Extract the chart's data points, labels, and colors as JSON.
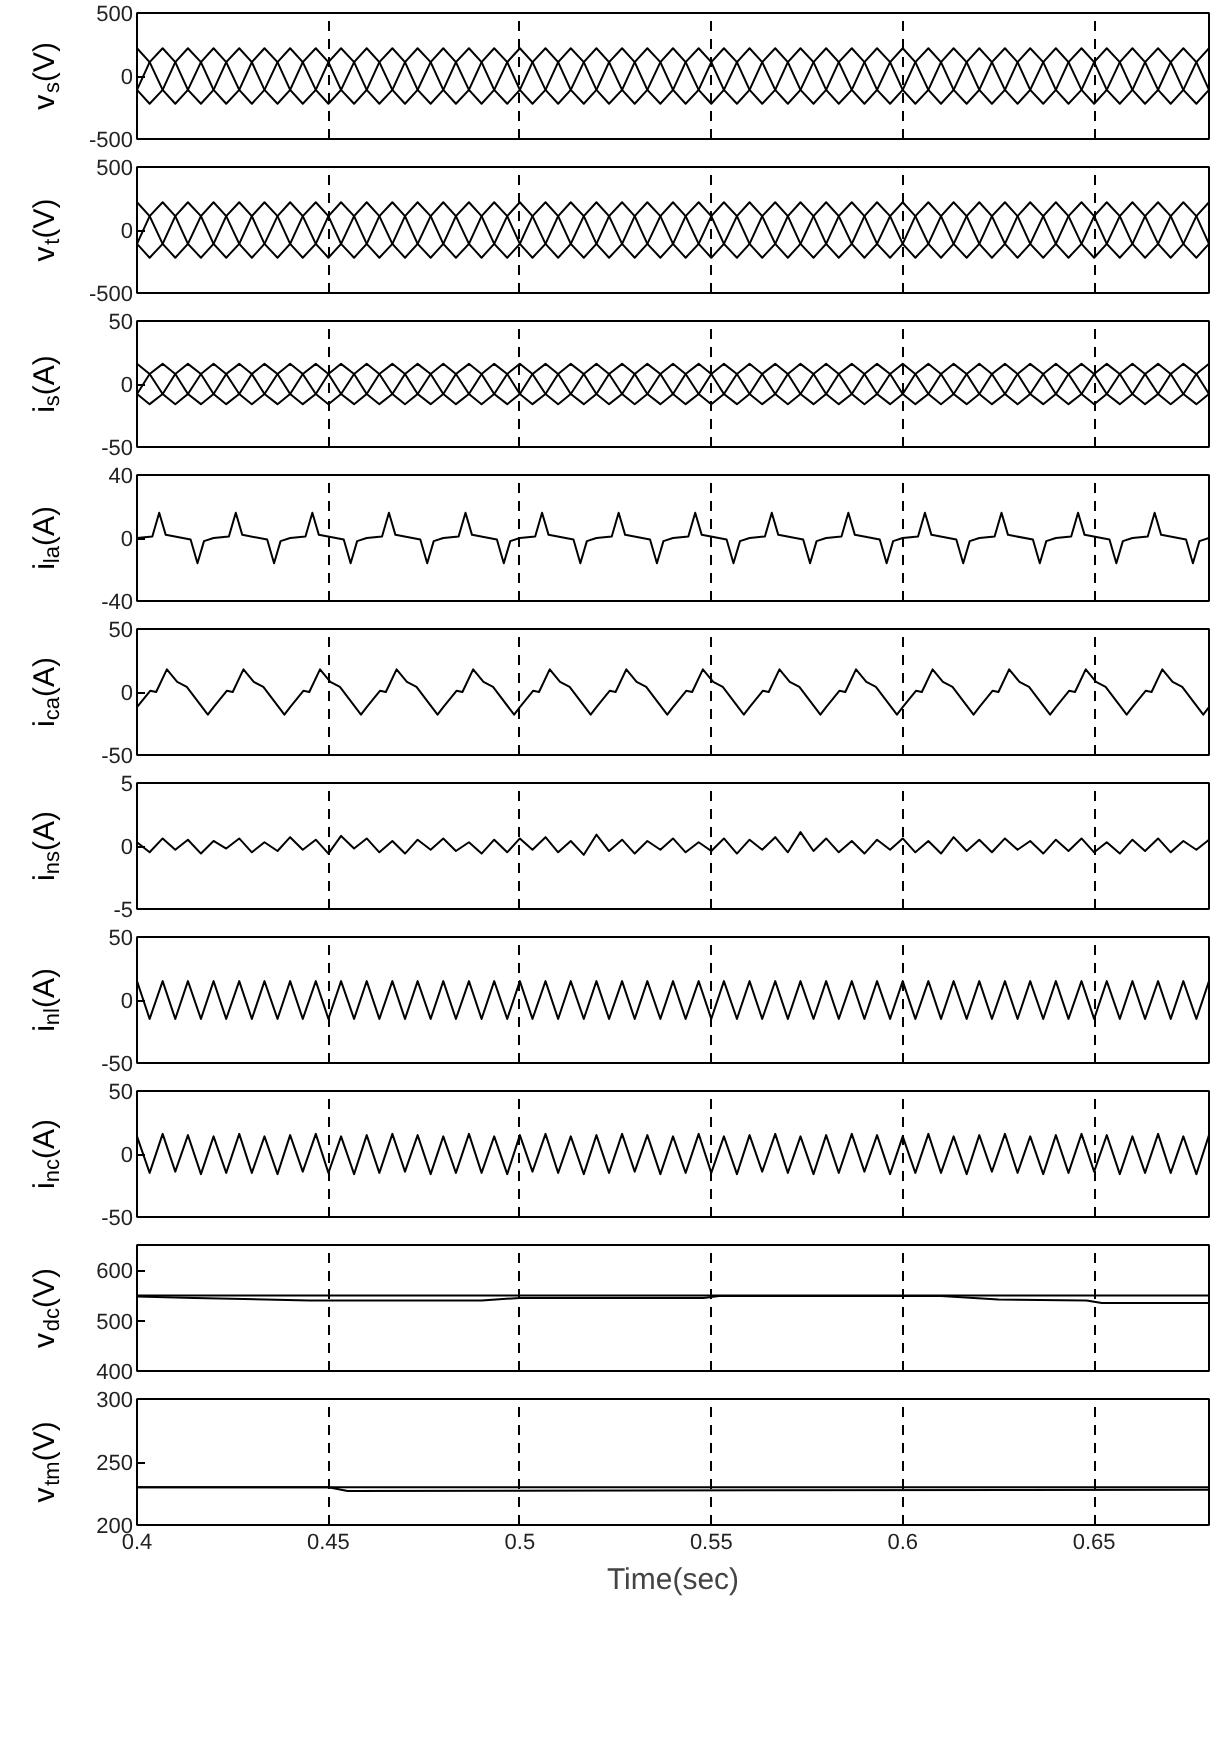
{
  "chart_data": [
    {
      "type": "line",
      "ylabel": "v$_{s}$(V)",
      "xlim": [
        0.4,
        0.68
      ],
      "xticks": [
        0.4,
        0.45,
        0.5,
        0.55,
        0.6,
        0.65
      ],
      "ylim": [
        -500,
        500
      ],
      "yticks": [
        -500,
        0,
        500
      ],
      "grid": "x",
      "tick_labels": "y",
      "x": [
        0.4,
        0.4033,
        0.4067,
        0.41,
        0.4133,
        0.4167,
        0.42,
        0.4233,
        0.4267,
        0.43,
        0.4333,
        0.4367,
        0.44,
        0.4433,
        0.4467,
        0.45,
        0.4533,
        0.4567,
        0.46,
        0.4633,
        0.4667,
        0.47,
        0.4733,
        0.4767,
        0.48,
        0.4833,
        0.4867,
        0.49,
        0.4933,
        0.4967,
        0.5,
        0.5033,
        0.5067,
        0.51,
        0.5133,
        0.5167,
        0.52,
        0.5233,
        0.5267,
        0.53,
        0.5333,
        0.5367,
        0.54,
        0.5433,
        0.5467,
        0.55,
        0.5533,
        0.5567,
        0.56,
        0.5633,
        0.5667,
        0.57,
        0.5733,
        0.5767,
        0.58,
        0.5833,
        0.5867,
        0.59,
        0.5933,
        0.5967,
        0.6,
        0.6033,
        0.6067,
        0.61,
        0.6133,
        0.6167,
        0.62,
        0.6233,
        0.6267,
        0.63,
        0.6333,
        0.6367,
        0.64,
        0.6433,
        0.6467,
        0.65,
        0.6533,
        0.6567,
        0.66,
        0.6633,
        0.6667,
        0.67,
        0.6733,
        0.6767,
        0.68
      ],
      "series": [
        {
          "color": "#000000",
          "values": [
            220,
            110,
            -110,
            -220,
            -110,
            110,
            220,
            110,
            -110,
            -220,
            -110,
            110,
            220,
            110,
            -110,
            -220,
            -110,
            110,
            220,
            110,
            -110,
            -220,
            -110,
            110,
            220,
            110,
            -110,
            -220,
            -110,
            110,
            220,
            110,
            -110,
            -220,
            -110,
            110,
            220,
            110,
            -110,
            -220,
            -110,
            110,
            220,
            110,
            -110,
            -220,
            -110,
            110,
            220,
            110,
            -110,
            -220,
            -110,
            110,
            220,
            110,
            -110,
            -220,
            -110,
            110,
            220,
            110,
            -110,
            -220,
            -110,
            110,
            220,
            110,
            -110,
            -220,
            -110,
            110,
            220,
            110,
            -110,
            -220,
            -110,
            110,
            220,
            110,
            -110,
            -220,
            -110,
            110,
            220
          ]
        },
        {
          "color": "#000000",
          "values": [
            -110,
            110,
            220,
            110,
            -110,
            -220,
            -110,
            110,
            220,
            110,
            -110,
            -220,
            -110,
            110,
            220,
            110,
            -110,
            -220,
            -110,
            110,
            220,
            110,
            -110,
            -220,
            -110,
            110,
            220,
            110,
            -110,
            -220,
            -110,
            110,
            220,
            110,
            -110,
            -220,
            -110,
            110,
            220,
            110,
            -110,
            -220,
            -110,
            110,
            220,
            110,
            -110,
            -220,
            -110,
            110,
            220,
            110,
            -110,
            -220,
            -110,
            110,
            220,
            110,
            -110,
            -220,
            -110,
            110,
            220,
            110,
            -110,
            -220,
            -110,
            110,
            220,
            110,
            -110,
            -220,
            -110,
            110,
            220,
            110,
            -110,
            -220,
            -110,
            110,
            220,
            110,
            -110,
            -220,
            -110
          ]
        },
        {
          "color": "#000000",
          "values": [
            -110,
            -220,
            -110,
            110,
            220,
            110,
            -110,
            -220,
            -110,
            110,
            220,
            110,
            -110,
            -220,
            -110,
            110,
            220,
            110,
            -110,
            -220,
            -110,
            110,
            220,
            110,
            -110,
            -220,
            -110,
            110,
            220,
            110,
            -110,
            -220,
            -110,
            110,
            220,
            110,
            -110,
            -220,
            -110,
            110,
            220,
            110,
            -110,
            -220,
            -110,
            110,
            220,
            110,
            -110,
            -220,
            -110,
            110,
            220,
            110,
            -110,
            -220,
            -110,
            110,
            220,
            110,
            -110,
            -220,
            -110,
            110,
            220,
            110,
            -110,
            -220,
            -110,
            110,
            220,
            110,
            -110,
            -220,
            -110,
            110,
            220,
            110,
            -110,
            -220,
            -110,
            110,
            220,
            110,
            -110
          ]
        }
      ]
    },
    {
      "type": "line",
      "ylabel": "v$_{t}$(V)",
      "xlim": [
        0.4,
        0.68
      ],
      "xticks": [
        0.4,
        0.45,
        0.5,
        0.55,
        0.6,
        0.65
      ],
      "ylim": [
        -500,
        500
      ],
      "yticks": [
        -500,
        0,
        500
      ],
      "grid": "x",
      "tick_labels": "y",
      "x": [
        0.4,
        0.4033,
        0.4067,
        0.41,
        0.4133,
        0.4167,
        0.42,
        0.4233,
        0.4267,
        0.43,
        0.4333,
        0.4367,
        0.44,
        0.4433,
        0.4467,
        0.45,
        0.4533,
        0.4567,
        0.46,
        0.4633,
        0.4667,
        0.47,
        0.4733,
        0.4767,
        0.48,
        0.4833,
        0.4867,
        0.49,
        0.4933,
        0.4967,
        0.5,
        0.5033,
        0.5067,
        0.51,
        0.5133,
        0.5167,
        0.52,
        0.5233,
        0.5267,
        0.53,
        0.5333,
        0.5367,
        0.54,
        0.5433,
        0.5467,
        0.55,
        0.5533,
        0.5567,
        0.56,
        0.5633,
        0.5667,
        0.57,
        0.5733,
        0.5767,
        0.58,
        0.5833,
        0.5867,
        0.59,
        0.5933,
        0.5967,
        0.6,
        0.6033,
        0.6067,
        0.61,
        0.6133,
        0.6167,
        0.62,
        0.6233,
        0.6267,
        0.63,
        0.6333,
        0.6367,
        0.64,
        0.6433,
        0.6467,
        0.65,
        0.6533,
        0.6567,
        0.66,
        0.6633,
        0.6667,
        0.67,
        0.6733,
        0.6767,
        0.68
      ],
      "series": [
        {
          "color": "#000000",
          "values": [
            220,
            110,
            -110,
            -220,
            -110,
            110,
            220,
            110,
            -110,
            -220,
            -110,
            110,
            220,
            110,
            -110,
            -220,
            -110,
            110,
            220,
            110,
            -110,
            -220,
            -110,
            110,
            220,
            110,
            -110,
            -220,
            -110,
            110,
            220,
            110,
            -110,
            -220,
            -110,
            110,
            220,
            110,
            -110,
            -220,
            -110,
            110,
            220,
            110,
            -110,
            -220,
            -110,
            110,
            220,
            110,
            -110,
            -220,
            -110,
            110,
            220,
            110,
            -110,
            -220,
            -110,
            110,
            220,
            110,
            -110,
            -220,
            -110,
            110,
            220,
            110,
            -110,
            -220,
            -110,
            110,
            220,
            110,
            -110,
            -220,
            -110,
            110,
            220,
            110,
            -110,
            -220,
            -110,
            110,
            220
          ]
        },
        {
          "color": "#000000",
          "values": [
            -110,
            110,
            220,
            110,
            -110,
            -220,
            -110,
            110,
            220,
            110,
            -110,
            -220,
            -110,
            110,
            220,
            110,
            -110,
            -220,
            -110,
            110,
            220,
            110,
            -110,
            -220,
            -110,
            110,
            220,
            110,
            -110,
            -220,
            -110,
            110,
            220,
            110,
            -110,
            -220,
            -110,
            110,
            220,
            110,
            -110,
            -220,
            -110,
            110,
            220,
            110,
            -110,
            -220,
            -110,
            110,
            220,
            110,
            -110,
            -220,
            -110,
            110,
            220,
            110,
            -110,
            -220,
            -110,
            110,
            220,
            110,
            -110,
            -220,
            -110,
            110,
            220,
            110,
            -110,
            -220,
            -110,
            110,
            220,
            110,
            -110,
            -220,
            -110,
            110,
            220,
            110,
            -110,
            -220,
            -110
          ]
        },
        {
          "color": "#000000",
          "values": [
            -110,
            -220,
            -110,
            110,
            220,
            110,
            -110,
            -220,
            -110,
            110,
            220,
            110,
            -110,
            -220,
            -110,
            110,
            220,
            110,
            -110,
            -220,
            -110,
            110,
            220,
            110,
            -110,
            -220,
            -110,
            110,
            220,
            110,
            -110,
            -220,
            -110,
            110,
            220,
            110,
            -110,
            -220,
            -110,
            110,
            220,
            110,
            -110,
            -220,
            -110,
            110,
            220,
            110,
            -110,
            -220,
            -110,
            110,
            220,
            110,
            -110,
            -220,
            -110,
            110,
            220,
            110,
            -110,
            -220,
            -110,
            110,
            220,
            110,
            -110,
            -220,
            -110,
            110,
            220,
            110,
            -110,
            -220,
            -110,
            110,
            220,
            110,
            -110,
            -220,
            -110,
            110,
            220,
            110,
            -110
          ]
        }
      ]
    },
    {
      "type": "line",
      "ylabel": "i$_{s}$(A)",
      "xlim": [
        0.4,
        0.68
      ],
      "xticks": [
        0.4,
        0.45,
        0.5,
        0.55,
        0.6,
        0.65
      ],
      "ylim": [
        -50,
        50
      ],
      "yticks": [
        -50,
        0,
        50
      ],
      "grid": "x",
      "tick_labels": "y",
      "x": [
        0.4,
        0.4033,
        0.4067,
        0.41,
        0.4133,
        0.4167,
        0.42,
        0.4233,
        0.4267,
        0.43,
        0.4333,
        0.4367,
        0.44,
        0.4433,
        0.4467,
        0.45,
        0.4533,
        0.4567,
        0.46,
        0.4633,
        0.4667,
        0.47,
        0.4733,
        0.4767,
        0.48,
        0.4833,
        0.4867,
        0.49,
        0.4933,
        0.4967,
        0.5,
        0.5033,
        0.5067,
        0.51,
        0.5133,
        0.5167,
        0.52,
        0.5233,
        0.5267,
        0.53,
        0.5333,
        0.5367,
        0.54,
        0.5433,
        0.5467,
        0.55,
        0.5533,
        0.5567,
        0.56,
        0.5633,
        0.5667,
        0.57,
        0.5733,
        0.5767,
        0.58,
        0.5833,
        0.5867,
        0.59,
        0.5933,
        0.5967,
        0.6,
        0.6033,
        0.6067,
        0.61,
        0.6133,
        0.6167,
        0.62,
        0.6233,
        0.6267,
        0.63,
        0.6333,
        0.6367,
        0.64,
        0.6433,
        0.6467,
        0.65,
        0.6533,
        0.6567,
        0.66,
        0.6633,
        0.6667,
        0.67,
        0.6733,
        0.6767,
        0.68
      ],
      "series": [
        {
          "color": "#000000",
          "values": [
            16,
            8,
            -8,
            -16,
            -8,
            8,
            16,
            8,
            -8,
            -16,
            -8,
            8,
            16,
            8,
            -8,
            -16,
            -8,
            8,
            16,
            8,
            -8,
            -16,
            -8,
            8,
            16,
            8,
            -8,
            -16,
            -8,
            8,
            16,
            8,
            -8,
            -16,
            -8,
            8,
            16,
            8,
            -8,
            -16,
            -8,
            8,
            16,
            8,
            -8,
            -16,
            -8,
            8,
            16,
            8,
            -8,
            -16,
            -8,
            8,
            16,
            8,
            -8,
            -16,
            -8,
            8,
            16,
            8,
            -8,
            -16,
            -8,
            8,
            16,
            8,
            -8,
            -16,
            -8,
            8,
            16,
            8,
            -8,
            -16,
            -8,
            8,
            16,
            8,
            -8,
            -16,
            -8,
            8,
            16
          ]
        },
        {
          "color": "#000000",
          "values": [
            -8,
            8,
            16,
            8,
            -8,
            -16,
            -8,
            8,
            16,
            8,
            -8,
            -16,
            -8,
            8,
            16,
            8,
            -8,
            -16,
            -8,
            8,
            16,
            8,
            -8,
            -16,
            -8,
            8,
            16,
            8,
            -8,
            -16,
            -8,
            8,
            16,
            8,
            -8,
            -16,
            -8,
            8,
            16,
            8,
            -8,
            -16,
            -8,
            8,
            16,
            8,
            -8,
            -16,
            -8,
            8,
            16,
            8,
            -8,
            -16,
            -8,
            8,
            16,
            8,
            -8,
            -16,
            -8,
            8,
            16,
            8,
            -8,
            -16,
            -8,
            8,
            16,
            8,
            -8,
            -16,
            -8,
            8,
            16,
            8,
            -8,
            -16,
            -8,
            8,
            16,
            8,
            -8,
            -16,
            -8
          ]
        },
        {
          "color": "#000000",
          "values": [
            -8,
            -16,
            -8,
            8,
            16,
            8,
            -8,
            -16,
            -8,
            8,
            16,
            8,
            -8,
            -16,
            -8,
            8,
            16,
            8,
            -8,
            -16,
            -8,
            8,
            16,
            8,
            -8,
            -16,
            -8,
            8,
            16,
            8,
            -8,
            -16,
            -8,
            8,
            16,
            8,
            -8,
            -16,
            -8,
            8,
            16,
            8,
            -8,
            -16,
            -8,
            8,
            16,
            8,
            -8,
            -16,
            -8,
            8,
            16,
            8,
            -8,
            -16,
            -8,
            8,
            16,
            8,
            -8,
            -16,
            -8,
            8,
            16,
            8,
            -8,
            -16,
            -8,
            8,
            16,
            8,
            -8,
            -16,
            -8,
            8,
            16,
            8,
            -8,
            -16,
            -8,
            8,
            16,
            8,
            -8
          ]
        }
      ]
    },
    {
      "type": "line",
      "ylabel": "i$_{la}$(A)",
      "xlim": [
        0.4,
        0.68
      ],
      "xticks": [
        0.4,
        0.45,
        0.5,
        0.55,
        0.6,
        0.65
      ],
      "ylim": [
        -40,
        40
      ],
      "yticks": [
        -40,
        0,
        40
      ],
      "grid": "x",
      "tick_labels": "y",
      "series": [
        {
          "color": "#000000",
          "x": [
            0.4,
            0.404,
            0.4058,
            0.4075,
            0.414,
            0.4158,
            0.4175,
            0.42,
            0.424,
            0.4258,
            0.4275,
            0.434,
            0.4358,
            0.4375,
            0.44,
            0.444,
            0.4458,
            0.4475,
            0.454,
            0.4558,
            0.4575,
            0.46,
            0.464,
            0.4658,
            0.4675,
            0.474,
            0.4758,
            0.4775,
            0.48,
            0.484,
            0.4858,
            0.4875,
            0.494,
            0.4958,
            0.4975,
            0.5,
            0.504,
            0.5058,
            0.5075,
            0.514,
            0.5158,
            0.5175,
            0.52,
            0.524,
            0.5258,
            0.5275,
            0.534,
            0.5358,
            0.5375,
            0.54,
            0.544,
            0.5458,
            0.5475,
            0.554,
            0.5558,
            0.5575,
            0.56,
            0.564,
            0.5658,
            0.5675,
            0.574,
            0.5758,
            0.5775,
            0.58,
            0.584,
            0.5858,
            0.5875,
            0.594,
            0.5958,
            0.5975,
            0.6,
            0.604,
            0.6058,
            0.6075,
            0.614,
            0.6158,
            0.6175,
            0.62,
            0.624,
            0.6258,
            0.6275,
            0.634,
            0.6358,
            0.6375,
            0.64,
            0.644,
            0.6458,
            0.6475,
            0.654,
            0.6558,
            0.6575,
            0.66,
            0.664,
            0.6658,
            0.6675,
            0.674,
            0.6758,
            0.6775,
            0.68
          ],
          "values": [
            0,
            1,
            16,
            2,
            -1,
            -16,
            -2,
            0,
            1,
            16,
            2,
            -1,
            -16,
            -2,
            0,
            1,
            16,
            2,
            -1,
            -16,
            -2,
            0,
            1,
            16,
            2,
            -1,
            -16,
            -2,
            0,
            1,
            16,
            2,
            -1,
            -16,
            -2,
            0,
            1,
            16,
            2,
            -1,
            -16,
            -2,
            0,
            1,
            16,
            2,
            -1,
            -16,
            -2,
            0,
            1,
            16,
            2,
            -1,
            -16,
            -2,
            0,
            1,
            16,
            2,
            -1,
            -16,
            -2,
            0,
            1,
            16,
            2,
            -1,
            -16,
            -2,
            0,
            1,
            16,
            2,
            -1,
            -16,
            -2,
            0,
            1,
            16,
            2,
            -1,
            -16,
            -2,
            0,
            1,
            16,
            2,
            -1,
            -16,
            -2,
            0,
            1,
            16,
            2,
            -1,
            -16,
            -2,
            0
          ]
        }
      ]
    },
    {
      "type": "line",
      "ylabel": "i$_{ca}$(A)",
      "xlim": [
        0.4,
        0.68
      ],
      "xticks": [
        0.4,
        0.45,
        0.5,
        0.55,
        0.6,
        0.65
      ],
      "ylim": [
        -50,
        50
      ],
      "yticks": [
        -50,
        0,
        50
      ],
      "grid": "x",
      "tick_labels": "y",
      "series": [
        {
          "color": "#000000",
          "x": [
            0.4,
            0.4035,
            0.405,
            0.4078,
            0.4105,
            0.413,
            0.4185,
            0.42,
            0.4235,
            0.425,
            0.4278,
            0.4305,
            0.433,
            0.4385,
            0.44,
            0.4435,
            0.445,
            0.4478,
            0.4505,
            0.453,
            0.4585,
            0.46,
            0.4635,
            0.465,
            0.4678,
            0.4705,
            0.473,
            0.4785,
            0.48,
            0.4835,
            0.485,
            0.4878,
            0.4905,
            0.493,
            0.4985,
            0.5,
            0.5035,
            0.505,
            0.5078,
            0.5105,
            0.513,
            0.5185,
            0.52,
            0.5235,
            0.525,
            0.5278,
            0.5305,
            0.533,
            0.5385,
            0.54,
            0.5435,
            0.545,
            0.5478,
            0.5505,
            0.553,
            0.5585,
            0.56,
            0.5635,
            0.565,
            0.5678,
            0.5705,
            0.573,
            0.5785,
            0.58,
            0.5835,
            0.585,
            0.5878,
            0.5905,
            0.593,
            0.5985,
            0.6,
            0.6035,
            0.605,
            0.6078,
            0.6105,
            0.613,
            0.6185,
            0.62,
            0.6235,
            0.625,
            0.6278,
            0.6305,
            0.633,
            0.6385,
            0.64,
            0.6435,
            0.645,
            0.6478,
            0.6505,
            0.653,
            0.6585,
            0.66,
            0.6635,
            0.665,
            0.6678,
            0.6705,
            0.673,
            0.6785,
            0.68
          ],
          "values": [
            -12,
            1,
            0,
            18,
            8,
            4,
            -18,
            -12,
            1,
            0,
            18,
            8,
            4,
            -18,
            -12,
            1,
            0,
            18,
            8,
            4,
            -18,
            -12,
            1,
            0,
            18,
            8,
            4,
            -18,
            -12,
            1,
            0,
            18,
            8,
            4,
            -18,
            -12,
            1,
            0,
            18,
            8,
            4,
            -18,
            -12,
            1,
            0,
            18,
            8,
            4,
            -18,
            -12,
            1,
            0,
            18,
            8,
            4,
            -18,
            -12,
            1,
            0,
            18,
            8,
            4,
            -18,
            -12,
            1,
            0,
            18,
            8,
            4,
            -18,
            -12,
            1,
            0,
            18,
            8,
            4,
            -18,
            -12,
            1,
            0,
            18,
            8,
            4,
            -18,
            -12,
            1,
            0,
            18,
            8,
            4,
            -18,
            -12,
            1,
            0,
            18,
            8,
            4,
            -18,
            -12
          ]
        }
      ]
    },
    {
      "type": "line",
      "ylabel": "i$_{ns}$(A)",
      "xlim": [
        0.4,
        0.68
      ],
      "xticks": [
        0.4,
        0.45,
        0.5,
        0.55,
        0.6,
        0.65
      ],
      "ylim": [
        -5,
        5
      ],
      "yticks": [
        -5,
        0,
        5
      ],
      "grid": "x",
      "tick_labels": "y",
      "x": [
        0.4,
        0.4033,
        0.4067,
        0.41,
        0.4133,
        0.4167,
        0.42,
        0.4233,
        0.4267,
        0.43,
        0.4333,
        0.4367,
        0.44,
        0.4433,
        0.4467,
        0.45,
        0.4533,
        0.4567,
        0.46,
        0.4633,
        0.4667,
        0.47,
        0.4733,
        0.4767,
        0.48,
        0.4833,
        0.4867,
        0.49,
        0.4933,
        0.4967,
        0.5,
        0.5033,
        0.5067,
        0.51,
        0.5133,
        0.5167,
        0.52,
        0.5233,
        0.5267,
        0.53,
        0.5333,
        0.5367,
        0.54,
        0.5433,
        0.5467,
        0.55,
        0.5533,
        0.5567,
        0.56,
        0.5633,
        0.5667,
        0.57,
        0.5733,
        0.5767,
        0.58,
        0.5833,
        0.5867,
        0.59,
        0.5933,
        0.5967,
        0.6,
        0.6033,
        0.6067,
        0.61,
        0.6133,
        0.6167,
        0.62,
        0.6233,
        0.6267,
        0.63,
        0.6333,
        0.6367,
        0.64,
        0.6433,
        0.6467,
        0.65,
        0.6533,
        0.6567,
        0.66,
        0.6633,
        0.6667,
        0.67,
        0.6733,
        0.6767,
        0.68
      ],
      "series": [
        {
          "color": "#000000",
          "values": [
            0.3,
            -0.5,
            0.6,
            -0.3,
            0.5,
            -0.6,
            0.4,
            -0.2,
            0.6,
            -0.5,
            0.3,
            -0.4,
            0.7,
            -0.3,
            0.5,
            -0.6,
            0.8,
            -0.2,
            0.6,
            -0.5,
            0.4,
            -0.6,
            0.5,
            -0.3,
            0.6,
            -0.4,
            0.3,
            -0.6,
            0.5,
            -0.5,
            0.6,
            -0.3,
            0.7,
            -0.5,
            0.4,
            -0.7,
            0.9,
            -0.4,
            0.5,
            -0.6,
            0.4,
            -0.3,
            0.6,
            -0.5,
            0.3,
            -0.4,
            0.6,
            -0.6,
            0.5,
            -0.3,
            0.7,
            -0.5,
            1.1,
            -0.4,
            0.6,
            -0.5,
            0.4,
            -0.6,
            0.5,
            -0.3,
            0.6,
            -0.5,
            0.4,
            -0.6,
            0.7,
            -0.4,
            0.5,
            -0.5,
            0.6,
            -0.3,
            0.4,
            -0.6,
            0.5,
            -0.4,
            0.6,
            -0.5,
            0.3,
            -0.6,
            0.5,
            -0.4,
            0.6,
            -0.5,
            0.4,
            -0.3,
            0.5
          ]
        }
      ]
    },
    {
      "type": "line",
      "ylabel": "i$_{nl}$(A)",
      "xlim": [
        0.4,
        0.68
      ],
      "xticks": [
        0.4,
        0.45,
        0.5,
        0.55,
        0.6,
        0.65
      ],
      "ylim": [
        -50,
        50
      ],
      "yticks": [
        -50,
        0,
        50
      ],
      "grid": "x",
      "tick_labels": "y",
      "x": [
        0.4,
        0.4033,
        0.4067,
        0.41,
        0.4133,
        0.4167,
        0.42,
        0.4233,
        0.4267,
        0.43,
        0.4333,
        0.4367,
        0.44,
        0.4433,
        0.4467,
        0.45,
        0.4533,
        0.4567,
        0.46,
        0.4633,
        0.4667,
        0.47,
        0.4733,
        0.4767,
        0.48,
        0.4833,
        0.4867,
        0.49,
        0.4933,
        0.4967,
        0.5,
        0.5033,
        0.5067,
        0.51,
        0.5133,
        0.5167,
        0.52,
        0.5233,
        0.5267,
        0.53,
        0.5333,
        0.5367,
        0.54,
        0.5433,
        0.5467,
        0.55,
        0.5533,
        0.5567,
        0.56,
        0.5633,
        0.5667,
        0.57,
        0.5733,
        0.5767,
        0.58,
        0.5833,
        0.5867,
        0.59,
        0.5933,
        0.5967,
        0.6,
        0.6033,
        0.6067,
        0.61,
        0.6133,
        0.6167,
        0.62,
        0.6233,
        0.6267,
        0.63,
        0.6333,
        0.6367,
        0.64,
        0.6433,
        0.6467,
        0.65,
        0.6533,
        0.6567,
        0.66,
        0.6633,
        0.6667,
        0.67,
        0.6733,
        0.6767,
        0.68
      ],
      "series": [
        {
          "color": "#000000",
          "values": [
            15,
            -15,
            15,
            -15,
            15,
            -15,
            15,
            -15,
            15,
            -15,
            15,
            -15,
            15,
            -15,
            15,
            -15,
            15,
            -15,
            15,
            -15,
            15,
            -15,
            15,
            -15,
            15,
            -15,
            15,
            -15,
            15,
            -15,
            15,
            -15,
            15,
            -15,
            15,
            -15,
            15,
            -15,
            15,
            -15,
            15,
            -15,
            15,
            -15,
            15,
            -15,
            15,
            -15,
            15,
            -15,
            15,
            -15,
            15,
            -15,
            15,
            -15,
            15,
            -15,
            15,
            -15,
            15,
            -15,
            15,
            -15,
            15,
            -15,
            15,
            -15,
            15,
            -15,
            15,
            -15,
            15,
            -15,
            15,
            -15,
            15,
            -15,
            15,
            -15,
            15,
            -15,
            15,
            -15,
            15
          ]
        }
      ]
    },
    {
      "type": "line",
      "ylabel": "i$_{nc}$(A)",
      "xlim": [
        0.4,
        0.68
      ],
      "xticks": [
        0.4,
        0.45,
        0.5,
        0.55,
        0.6,
        0.65
      ],
      "ylim": [
        -50,
        50
      ],
      "yticks": [
        -50,
        0,
        50
      ],
      "grid": "x",
      "tick_labels": "y",
      "x": [
        0.4,
        0.4033,
        0.4067,
        0.41,
        0.4133,
        0.4167,
        0.42,
        0.4233,
        0.4267,
        0.43,
        0.4333,
        0.4367,
        0.44,
        0.4433,
        0.4467,
        0.45,
        0.4533,
        0.4567,
        0.46,
        0.4633,
        0.4667,
        0.47,
        0.4733,
        0.4767,
        0.48,
        0.4833,
        0.4867,
        0.49,
        0.4933,
        0.4967,
        0.5,
        0.5033,
        0.5067,
        0.51,
        0.5133,
        0.5167,
        0.52,
        0.5233,
        0.5267,
        0.53,
        0.5333,
        0.5367,
        0.54,
        0.5433,
        0.5467,
        0.55,
        0.5533,
        0.5567,
        0.56,
        0.5633,
        0.5667,
        0.57,
        0.5733,
        0.5767,
        0.58,
        0.5833,
        0.5867,
        0.59,
        0.5933,
        0.5967,
        0.6,
        0.6033,
        0.6067,
        0.61,
        0.6133,
        0.6167,
        0.62,
        0.6233,
        0.6267,
        0.63,
        0.6333,
        0.6367,
        0.64,
        0.6433,
        0.6467,
        0.65,
        0.6533,
        0.6567,
        0.66,
        0.6633,
        0.6667,
        0.67,
        0.6733,
        0.6767,
        0.68
      ],
      "series": [
        {
          "color": "#000000",
          "values": [
            14,
            -15,
            16,
            -14,
            15,
            -16,
            14,
            -15,
            16,
            -15,
            14,
            -16,
            15,
            -14,
            16,
            -15,
            14,
            -16,
            15,
            -15,
            16,
            -14,
            15,
            -16,
            14,
            -15,
            16,
            -15,
            14,
            -16,
            15,
            -14,
            16,
            -15,
            14,
            -16,
            15,
            -15,
            16,
            -14,
            15,
            -16,
            14,
            -15,
            16,
            -15,
            14,
            -16,
            15,
            -14,
            16,
            -15,
            14,
            -16,
            15,
            -15,
            16,
            -14,
            15,
            -16,
            14,
            -15,
            16,
            -15,
            14,
            -16,
            15,
            -14,
            16,
            -15,
            14,
            -16,
            15,
            -15,
            16,
            -14,
            15,
            -16,
            14,
            -15,
            16,
            -15,
            14,
            -16,
            15
          ]
        }
      ]
    },
    {
      "type": "line",
      "ylabel": "v$_{dc}$(V)",
      "xlim": [
        0.4,
        0.68
      ],
      "xticks": [
        0.4,
        0.45,
        0.5,
        0.55,
        0.6,
        0.65
      ],
      "ylim": [
        400,
        650
      ],
      "yticks": [
        400,
        500,
        600
      ],
      "grid": "x",
      "tick_labels": "y",
      "series": [
        {
          "color": "#000000",
          "x": [
            0.4,
            0.68
          ],
          "values": [
            550,
            550
          ]
        },
        {
          "color": "#000000",
          "x": [
            0.4,
            0.415,
            0.445,
            0.49,
            0.5,
            0.548,
            0.552,
            0.61,
            0.625,
            0.648,
            0.652,
            0.68
          ],
          "values": [
            548,
            545,
            540,
            540,
            545,
            545,
            549,
            549,
            542,
            540,
            535,
            535
          ]
        }
      ]
    },
    {
      "type": "line",
      "ylabel": "v$_{tm}$(V)",
      "xlabel": "Time(sec)",
      "xlim": [
        0.4,
        0.68
      ],
      "xticks": [
        0.4,
        0.45,
        0.5,
        0.55,
        0.6,
        0.65
      ],
      "ylim": [
        200,
        300
      ],
      "yticks": [
        200,
        250,
        300
      ],
      "grid": "x",
      "series": [
        {
          "color": "#000000",
          "x": [
            0.4,
            0.68
          ],
          "values": [
            230,
            230
          ]
        },
        {
          "color": "#000000",
          "x": [
            0.4,
            0.45,
            0.455,
            0.68
          ],
          "values": [
            230,
            230,
            227,
            228
          ]
        }
      ]
    }
  ]
}
